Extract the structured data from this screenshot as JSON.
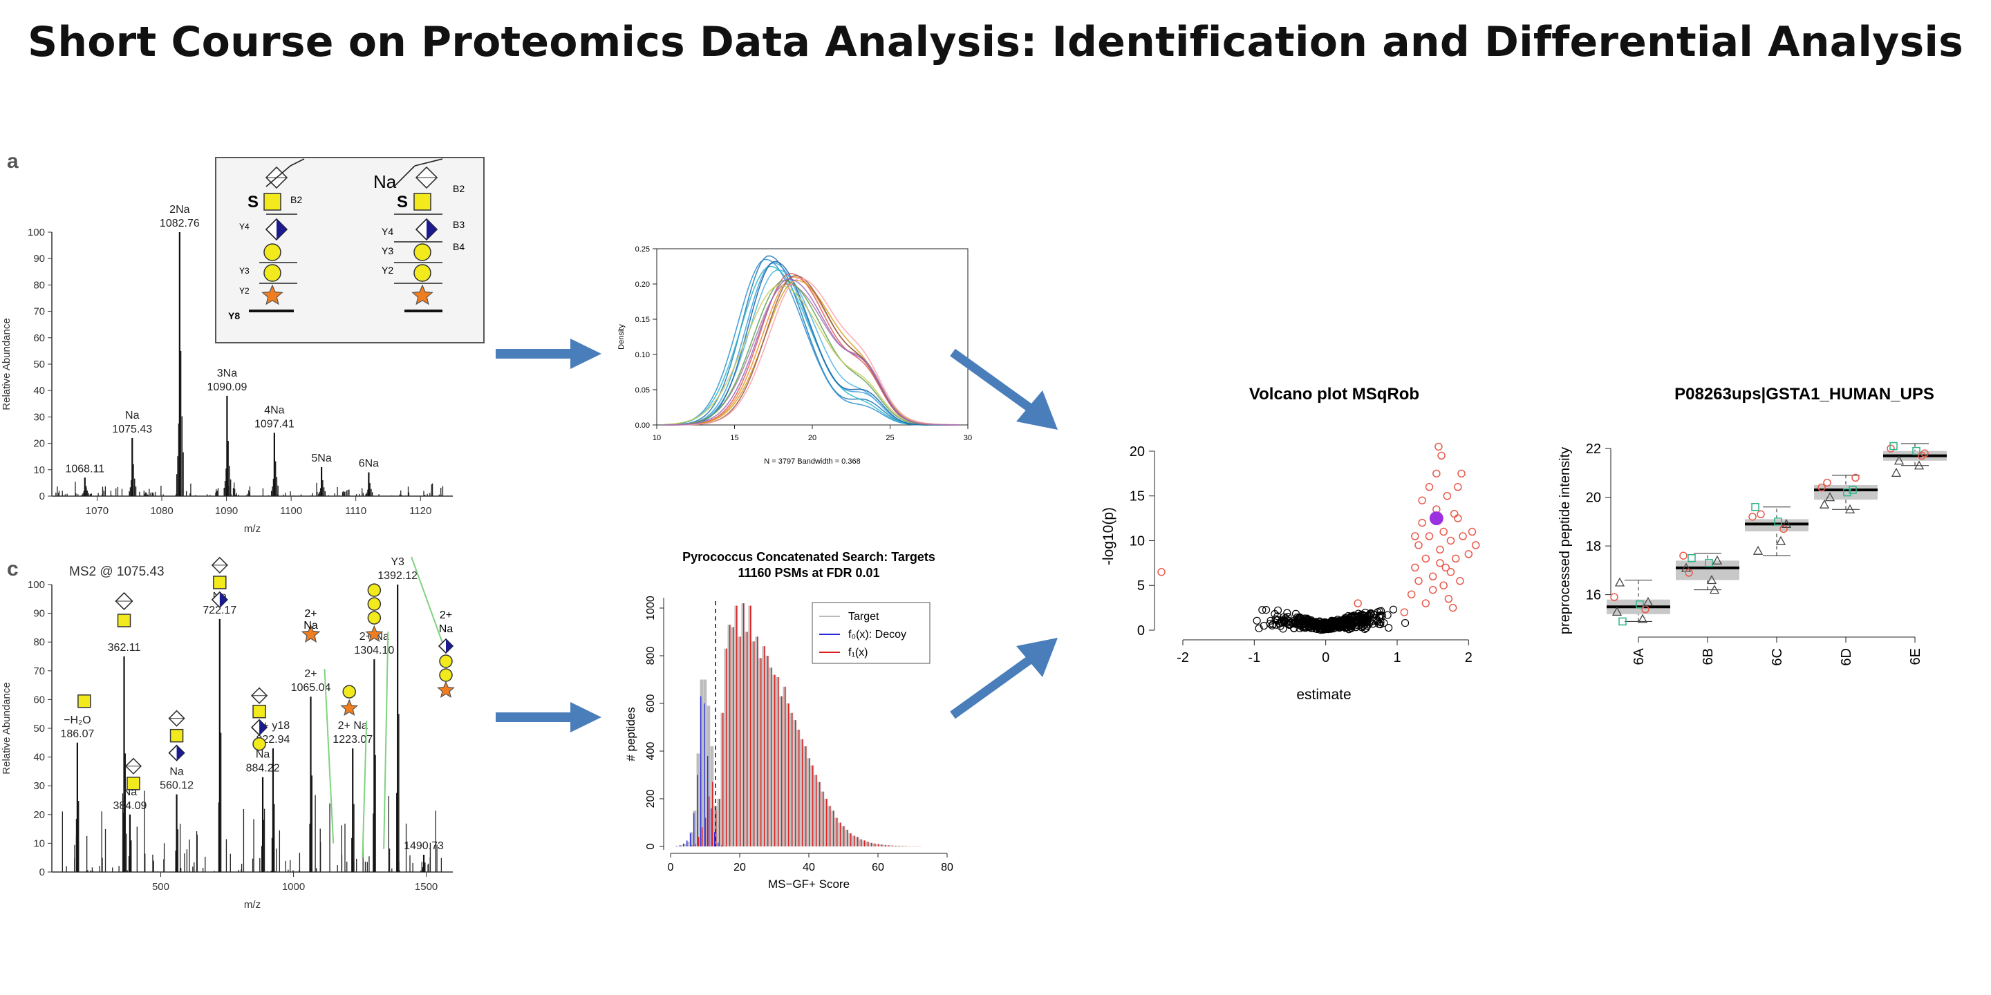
{
  "slide": {
    "title": "Short Course on Proteomics Data Analysis: Identification and Differential Analysis",
    "colors": {
      "arrow": "#4a7ebb",
      "accent_red": "#e8594a",
      "accent_purple": "#9b30e0"
    }
  },
  "chart_data": [
    {
      "id": "ms1",
      "type": "spectrum",
      "panel_letter": "a",
      "xlabel": "m/z",
      "ylabel": "Relative Abundance",
      "xlim": [
        1063,
        1125
      ],
      "ylim": [
        0,
        100
      ],
      "xticks": [
        1070,
        1080,
        1090,
        1100,
        1110,
        1120
      ],
      "yticks": [
        0,
        10,
        20,
        30,
        40,
        50,
        60,
        70,
        80,
        90,
        100
      ],
      "peaks": [
        {
          "x": 1068.11,
          "y": 7,
          "label": "1068.11",
          "tag": ""
        },
        {
          "x": 1075.43,
          "y": 22,
          "label": "1075.43",
          "tag": "Na"
        },
        {
          "x": 1082.76,
          "y": 100,
          "label": "1082.76",
          "tag": "2Na"
        },
        {
          "x": 1090.09,
          "y": 38,
          "label": "1090.09",
          "tag": "3Na"
        },
        {
          "x": 1097.41,
          "y": 24,
          "label": "1097.41",
          "tag": "4Na"
        },
        {
          "x": 1104.7,
          "y": 11,
          "label": "",
          "tag": "5Na"
        },
        {
          "x": 1112.0,
          "y": 9,
          "label": "",
          "tag": "6Na"
        }
      ],
      "inset_labels": [
        "S",
        "B2",
        "Y4",
        "Y3",
        "Y2",
        "Y8",
        "Na",
        "S",
        "B2",
        "B3",
        "B4",
        "Y4",
        "Y3",
        "Y2"
      ]
    },
    {
      "id": "ms2",
      "type": "spectrum",
      "panel_letter": "c",
      "header": "MS2 @ 1075.43",
      "xlabel": "m/z",
      "ylabel": "Relative Abundance",
      "xlim": [
        90,
        1600
      ],
      "ylim": [
        0,
        100
      ],
      "xticks": [
        500,
        1000,
        1500
      ],
      "yticks": [
        0,
        10,
        20,
        30,
        40,
        50,
        60,
        70,
        80,
        90,
        100
      ],
      "peaks": [
        {
          "x": 186.07,
          "y": 45,
          "label": "186.07",
          "tag": "−H₂O"
        },
        {
          "x": 362.11,
          "y": 75,
          "label": "362.11",
          "tag": ""
        },
        {
          "x": 384.09,
          "y": 20,
          "label": "384.09",
          "tag": "Na"
        },
        {
          "x": 560.12,
          "y": 27,
          "label": "560.12",
          "tag": "Na"
        },
        {
          "x": 722.17,
          "y": 88,
          "label": "722.17",
          "tag": "Na"
        },
        {
          "x": 884.22,
          "y": 33,
          "label": "884.22",
          "tag": "Na"
        },
        {
          "x": 922.94,
          "y": 43,
          "label": "922.94",
          "tag": "2+ y18"
        },
        {
          "x": 1065.04,
          "y": 61,
          "label": "1065.04",
          "tag": "2+"
        },
        {
          "x": 1223.07,
          "y": 43,
          "label": "1223.07",
          "tag": "2+ Na"
        },
        {
          "x": 1304.1,
          "y": 74,
          "label": "1304.10",
          "tag": "2+ Na"
        },
        {
          "x": 1392.12,
          "y": 100,
          "label": "1392.12",
          "tag": "Y3"
        },
        {
          "x": 1490.73,
          "y": 6,
          "label": "1490.73",
          "tag": ""
        }
      ],
      "extra_tags": [
        "2+",
        "Na",
        "2+",
        "Na"
      ]
    },
    {
      "id": "density",
      "type": "line",
      "ylabel": "Density",
      "footer": "N = 3797   Bandwidth = 0.368",
      "xlim": [
        10,
        30
      ],
      "ylim": [
        0,
        0.25
      ],
      "xticks": [
        10,
        15,
        20,
        25,
        30
      ],
      "yticks": [
        0.0,
        0.05,
        0.1,
        0.15,
        0.2,
        0.25
      ],
      "series": [
        {
          "color": "#1f77b4",
          "peak_x": 17.2,
          "peak_y": 0.24,
          "width": 1.7,
          "shoulder": 0.03
        },
        {
          "color": "#2a8fcf",
          "peak_x": 17.0,
          "peak_y": 0.235,
          "width": 1.8,
          "shoulder": 0.02
        },
        {
          "color": "#3aa0d8",
          "peak_x": 17.5,
          "peak_y": 0.23,
          "width": 1.75,
          "shoulder": 0.035
        },
        {
          "color": "#4cb3e3",
          "peak_x": 17.8,
          "peak_y": 0.22,
          "width": 1.85,
          "shoulder": 0.03
        },
        {
          "color": "#2ab7c9",
          "peak_x": 17.3,
          "peak_y": 0.225,
          "width": 1.9,
          "shoulder": 0.02
        },
        {
          "color": "#1a5fa8",
          "peak_x": 17.6,
          "peak_y": 0.232,
          "width": 1.7,
          "shoulder": 0.04
        },
        {
          "color": "#f28e2b",
          "peak_x": 18.8,
          "peak_y": 0.21,
          "width": 2.0,
          "shoulder": 0.04
        },
        {
          "color": "#e15759",
          "peak_x": 18.6,
          "peak_y": 0.215,
          "width": 1.95,
          "shoulder": 0.045
        },
        {
          "color": "#d4a017",
          "peak_x": 19.0,
          "peak_y": 0.205,
          "width": 2.05,
          "shoulder": 0.035
        },
        {
          "color": "#b07aa1",
          "peak_x": 18.4,
          "peak_y": 0.2,
          "width": 2.1,
          "shoulder": 0.05
        },
        {
          "color": "#59a14f",
          "peak_x": 18.2,
          "peak_y": 0.205,
          "width": 2.0,
          "shoulder": 0.03
        },
        {
          "color": "#8c564b",
          "peak_x": 18.9,
          "peak_y": 0.212,
          "width": 1.9,
          "shoulder": 0.045
        },
        {
          "color": "#c9c95a",
          "peak_x": 17.9,
          "peak_y": 0.198,
          "width": 2.2,
          "shoulder": 0.03
        },
        {
          "color": "#ff9da7",
          "peak_x": 19.2,
          "peak_y": 0.208,
          "width": 2.0,
          "shoulder": 0.04
        },
        {
          "color": "#9467bd",
          "peak_x": 18.5,
          "peak_y": 0.207,
          "width": 2.0,
          "shoulder": 0.05
        }
      ]
    },
    {
      "id": "histogram",
      "type": "bar",
      "title": "Pyrococcus Concatenated Search: Targets",
      "subtitle": "11160 PSMs at FDR 0.01",
      "xlabel": "MS−GF+ Score",
      "ylabel": "# peptides",
      "xlim": [
        0,
        80
      ],
      "ylim": [
        0,
        1000
      ],
      "xticks": [
        0,
        20,
        40,
        60,
        80
      ],
      "yticks": [
        0,
        200,
        400,
        600,
        800,
        1000
      ],
      "threshold": 13,
      "legend": [
        "Target",
        "f₀(x): Decoy",
        "f₁(x)"
      ],
      "legend_colors": [
        "#bbbbbb",
        "#2a2ae0",
        "#e02020"
      ],
      "x": [
        1,
        2,
        3,
        4,
        5,
        6,
        7,
        8,
        9,
        10,
        11,
        12,
        13,
        14,
        15,
        16,
        17,
        18,
        19,
        20,
        21,
        22,
        23,
        24,
        25,
        26,
        27,
        28,
        29,
        30,
        31,
        32,
        33,
        34,
        35,
        36,
        37,
        38,
        39,
        40,
        41,
        42,
        43,
        44,
        45,
        46,
        47,
        48,
        49,
        50,
        51,
        52,
        53,
        54,
        55,
        56,
        57,
        58,
        59,
        60,
        61,
        62,
        63,
        64,
        65,
        66,
        67,
        68,
        69,
        70,
        71,
        72,
        73,
        74,
        75,
        76,
        77,
        78
      ],
      "target": [
        0,
        2,
        5,
        10,
        20,
        60,
        150,
        390,
        700,
        700,
        590,
        420,
        170,
        200,
        560,
        830,
        930,
        920,
        1010,
        880,
        1020,
        900,
        1010,
        860,
        880,
        790,
        840,
        800,
        750,
        720,
        710,
        630,
        670,
        600,
        560,
        530,
        490,
        450,
        420,
        370,
        340,
        300,
        270,
        230,
        200,
        170,
        150,
        120,
        100,
        85,
        70,
        55,
        45,
        40,
        30,
        25,
        20,
        15,
        12,
        10,
        8,
        6,
        5,
        4,
        3,
        3,
        2,
        2,
        1,
        1,
        1,
        1,
        0,
        0,
        0,
        0,
        0,
        0
      ],
      "decoy": [
        0,
        2,
        5,
        12,
        25,
        55,
        140,
        300,
        630,
        600,
        380,
        160,
        60,
        15,
        4,
        1,
        0,
        0,
        0,
        0,
        0,
        0,
        0,
        0,
        0,
        0,
        0,
        0,
        0,
        0,
        0,
        0,
        0,
        0,
        0,
        0,
        0,
        0,
        0,
        0,
        0,
        0,
        0,
        0,
        0,
        0,
        0,
        0,
        0,
        0,
        0,
        0,
        0,
        0,
        0,
        0,
        0,
        0,
        0,
        0,
        0,
        0,
        0,
        0,
        0,
        0,
        0,
        0,
        0,
        0,
        0,
        0,
        0,
        0,
        0,
        0,
        0,
        0
      ],
      "f1": [
        0,
        0,
        0,
        0,
        0,
        5,
        10,
        40,
        80,
        120,
        210,
        270,
        150,
        200,
        560,
        830,
        930,
        920,
        1010,
        880,
        1020,
        900,
        1010,
        860,
        880,
        790,
        840,
        800,
        750,
        720,
        710,
        630,
        670,
        600,
        560,
        530,
        490,
        450,
        420,
        370,
        340,
        300,
        270,
        230,
        200,
        170,
        150,
        120,
        100,
        85,
        70,
        55,
        45,
        40,
        30,
        25,
        20,
        15,
        12,
        10,
        8,
        6,
        5,
        4,
        3,
        3,
        2,
        2,
        1,
        1,
        1,
        1,
        0,
        0,
        0,
        0,
        0,
        0
      ]
    },
    {
      "id": "volcano",
      "type": "scatter",
      "title": "Volcano plot MSqRob",
      "xlabel": "estimate",
      "ylabel": "-log10(p)",
      "xlim": [
        -2.3,
        2.2
      ],
      "ylim": [
        0,
        21
      ],
      "xticks": [
        -2,
        -1,
        0,
        1,
        2
      ],
      "yticks": [
        0,
        5,
        10,
        15,
        20
      ],
      "significant": [
        [
          -2.3,
          6.5
        ],
        [
          0.45,
          3.0
        ],
        [
          1.1,
          2.0
        ],
        [
          1.2,
          4.0
        ],
        [
          1.25,
          7.0
        ],
        [
          1.3,
          5.5
        ],
        [
          1.3,
          9.5
        ],
        [
          1.35,
          12.0
        ],
        [
          1.35,
          14.5
        ],
        [
          1.4,
          8.0
        ],
        [
          1.45,
          10.5
        ],
        [
          1.45,
          16.0
        ],
        [
          1.5,
          6.0
        ],
        [
          1.5,
          4.5
        ],
        [
          1.55,
          13.5
        ],
        [
          1.55,
          17.5
        ],
        [
          1.58,
          20.5
        ],
        [
          1.6,
          9.0
        ],
        [
          1.6,
          7.5
        ],
        [
          1.62,
          19.5
        ],
        [
          1.65,
          11.0
        ],
        [
          1.65,
          5.0
        ],
        [
          1.7,
          15.0
        ],
        [
          1.72,
          3.5
        ],
        [
          1.75,
          10.0
        ],
        [
          1.75,
          6.5
        ],
        [
          1.78,
          2.5
        ],
        [
          1.8,
          13.0
        ],
        [
          1.82,
          8.0
        ],
        [
          1.85,
          16.0
        ],
        [
          1.85,
          12.5
        ],
        [
          1.88,
          5.5
        ],
        [
          1.9,
          17.5
        ],
        [
          1.92,
          10.5
        ],
        [
          2.0,
          8.5
        ],
        [
          2.05,
          11.0
        ],
        [
          2.1,
          9.5
        ],
        [
          1.4,
          3.0
        ],
        [
          1.25,
          10.5
        ],
        [
          1.68,
          7.0
        ]
      ],
      "highlight": [
        1.55,
        12.5
      ],
      "colors": {
        "nonsig": "#000000",
        "sig": "#e8594a",
        "highlight": "#9b30e0"
      }
    },
    {
      "id": "boxplot",
      "type": "box",
      "title": "P08263ups|GSTA1_HUMAN_UPS",
      "ylabel": "preprocessed peptide intensity",
      "categories": [
        "6A",
        "6B",
        "6C",
        "6D",
        "6E"
      ],
      "ylim": [
        14.6,
        22.4
      ],
      "yticks": [
        16,
        18,
        20,
        22
      ],
      "boxes": [
        {
          "min": 14.9,
          "q1": 15.2,
          "median": 15.5,
          "q3": 15.8,
          "max": 16.6
        },
        {
          "min": 16.2,
          "q1": 16.6,
          "median": 17.1,
          "q3": 17.4,
          "max": 17.7
        },
        {
          "min": 17.6,
          "q1": 18.6,
          "median": 18.9,
          "q3": 19.1,
          "max": 19.6
        },
        {
          "min": 19.5,
          "q1": 19.9,
          "median": 20.3,
          "q3": 20.5,
          "max": 20.9
        },
        {
          "min": 21.3,
          "q1": 21.5,
          "median": 21.7,
          "q3": 21.9,
          "max": 22.2
        }
      ],
      "points": [
        [
          [
            15.9,
            "c"
          ],
          [
            15.6,
            "s"
          ],
          [
            15.3,
            "t"
          ],
          [
            15.0,
            "t"
          ],
          [
            16.5,
            "t"
          ],
          [
            15.4,
            "c"
          ],
          [
            14.9,
            "s"
          ],
          [
            15.7,
            "t"
          ]
        ],
        [
          [
            17.6,
            "c"
          ],
          [
            17.3,
            "s"
          ],
          [
            17.1,
            "t"
          ],
          [
            16.6,
            "t"
          ],
          [
            16.9,
            "c"
          ],
          [
            16.2,
            "t"
          ],
          [
            17.5,
            "s"
          ],
          [
            17.4,
            "t"
          ]
        ],
        [
          [
            19.2,
            "c"
          ],
          [
            19.0,
            "s"
          ],
          [
            19.6,
            "s"
          ],
          [
            18.2,
            "t"
          ],
          [
            17.8,
            "t"
          ],
          [
            18.7,
            "c"
          ],
          [
            19.3,
            "c"
          ],
          [
            18.9,
            "t"
          ]
        ],
        [
          [
            20.4,
            "c"
          ],
          [
            20.2,
            "s"
          ],
          [
            19.7,
            "t"
          ],
          [
            19.5,
            "t"
          ],
          [
            20.6,
            "c"
          ],
          [
            20.3,
            "s"
          ],
          [
            20.0,
            "t"
          ],
          [
            20.8,
            "c"
          ]
        ],
        [
          [
            22.0,
            "c"
          ],
          [
            21.9,
            "s"
          ],
          [
            22.1,
            "s"
          ],
          [
            21.3,
            "t"
          ],
          [
            21.0,
            "t"
          ],
          [
            21.7,
            "c"
          ],
          [
            21.5,
            "t"
          ],
          [
            21.8,
            "c"
          ]
        ]
      ],
      "colors": {
        "c": "#e8594a",
        "s": "#2db38a",
        "t": "#444444"
      }
    }
  ]
}
